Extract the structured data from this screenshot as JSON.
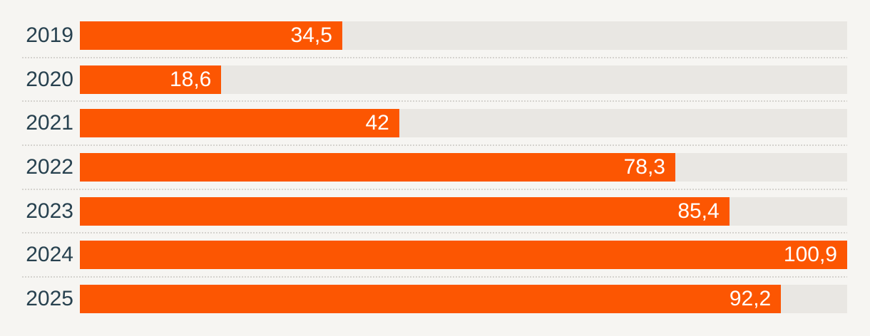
{
  "chart_data": {
    "type": "bar",
    "orientation": "horizontal",
    "title": "",
    "xlabel": "",
    "ylabel": "",
    "legend": "none",
    "grid": "dotted-row-separators-between-bars",
    "categories": [
      "2019",
      "2020",
      "2021",
      "2022",
      "2023",
      "2024",
      "2025"
    ],
    "values": [
      34.5,
      18.6,
      42,
      78.3,
      85.4,
      100.9,
      92.2
    ],
    "value_labels": [
      "34,5",
      "18,6",
      "42",
      "78,3",
      "85,4",
      "100,9",
      "92,2"
    ],
    "xlim": [
      0,
      100.9
    ],
    "value_label_position": "inside-bar-right",
    "colors": {
      "bar": "#FC5602",
      "track": "#E9E7E3",
      "category_label": "#27414F",
      "value_label": "#FFFFFF",
      "background": "#F6F5F2",
      "separator": "#D5D3CF"
    }
  }
}
